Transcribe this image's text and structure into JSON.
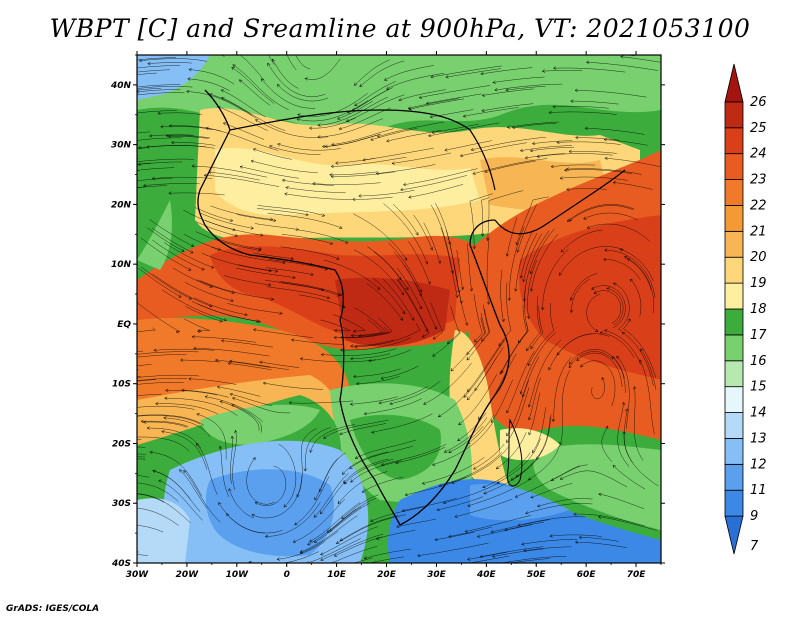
{
  "title": "WBPT [C] and Sreamline at 900hPa, VT: 2021053100",
  "credit": "GrADS: IGES/COLA",
  "map": {
    "lon_range": [
      -30,
      75
    ],
    "lat_range": [
      -40,
      45
    ],
    "lon_ticks": [
      "30W",
      "20W",
      "10W",
      "0",
      "10E",
      "20E",
      "30E",
      "40E",
      "50E",
      "60E",
      "70E"
    ],
    "lat_ticks": [
      "40S",
      "30S",
      "20S",
      "10S",
      "EQ",
      "10N",
      "20N",
      "30N",
      "40N"
    ]
  },
  "colorbar": {
    "labels": [
      "7",
      "9",
      "11",
      "12",
      "13",
      "14",
      "15",
      "16",
      "17",
      "18",
      "19",
      "20",
      "21",
      "22",
      "23",
      "24",
      "25",
      "26"
    ],
    "colors": [
      "#2a6fd6",
      "#3b88e6",
      "#5aa0ee",
      "#86bff5",
      "#b4daf8",
      "#e6f7fb",
      "#b8e8b2",
      "#78d06e",
      "#3cad3c",
      "#fdeea0",
      "#fdd77a",
      "#f8b553",
      "#f49a35",
      "#f07a2a",
      "#e85c22",
      "#d9401a",
      "#bf2a14",
      "#a41510"
    ]
  }
}
